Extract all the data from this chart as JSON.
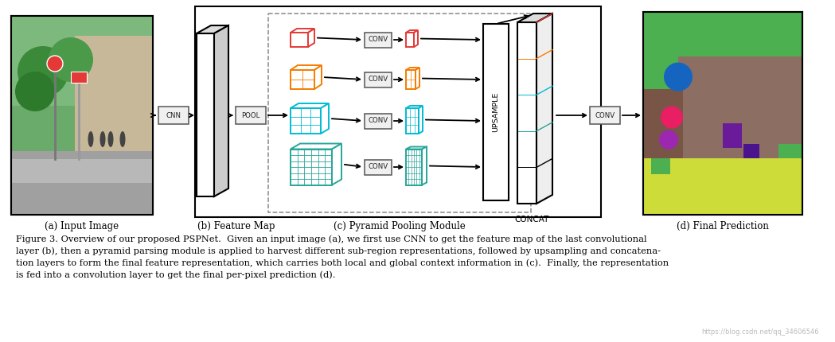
{
  "background_color": "#ffffff",
  "caption_line1": "Figure 3. Overview of our proposed PSPNet.  Given an input image (a), we first use CNN to get the feature map of the last convolutional",
  "caption_line2": "layer (b), then a pyramid parsing module is applied to harvest different sub-region representations, followed by upsampling and concatena-",
  "caption_line3": "tion layers to form the final feature representation, which carries both local and global context information in (c).  Finally, the representation",
  "caption_line4": "is fed into a convolution layer to get the final per-pixel prediction (d).",
  "watermark": "https://blog.csdn.net/qq_34606546",
  "label_a": "(a) Input Image",
  "label_b": "(b) Feature Map",
  "label_c": "(c) Pyramid Pooling Module",
  "label_d": "(d) Final Prediction",
  "label_concat": "CONCAT",
  "label_upsample": "UPSAMPLE",
  "colors": {
    "red": "#e53935",
    "orange": "#f57c00",
    "cyan": "#00bcd4",
    "green": "#26a69a",
    "black": "#000000",
    "white": "#ffffff",
    "light_gray": "#eeeeee",
    "mid_gray": "#dddddd",
    "dark_gray": "#555555"
  },
  "figsize": [
    10.49,
    4.3
  ],
  "dpi": 100
}
